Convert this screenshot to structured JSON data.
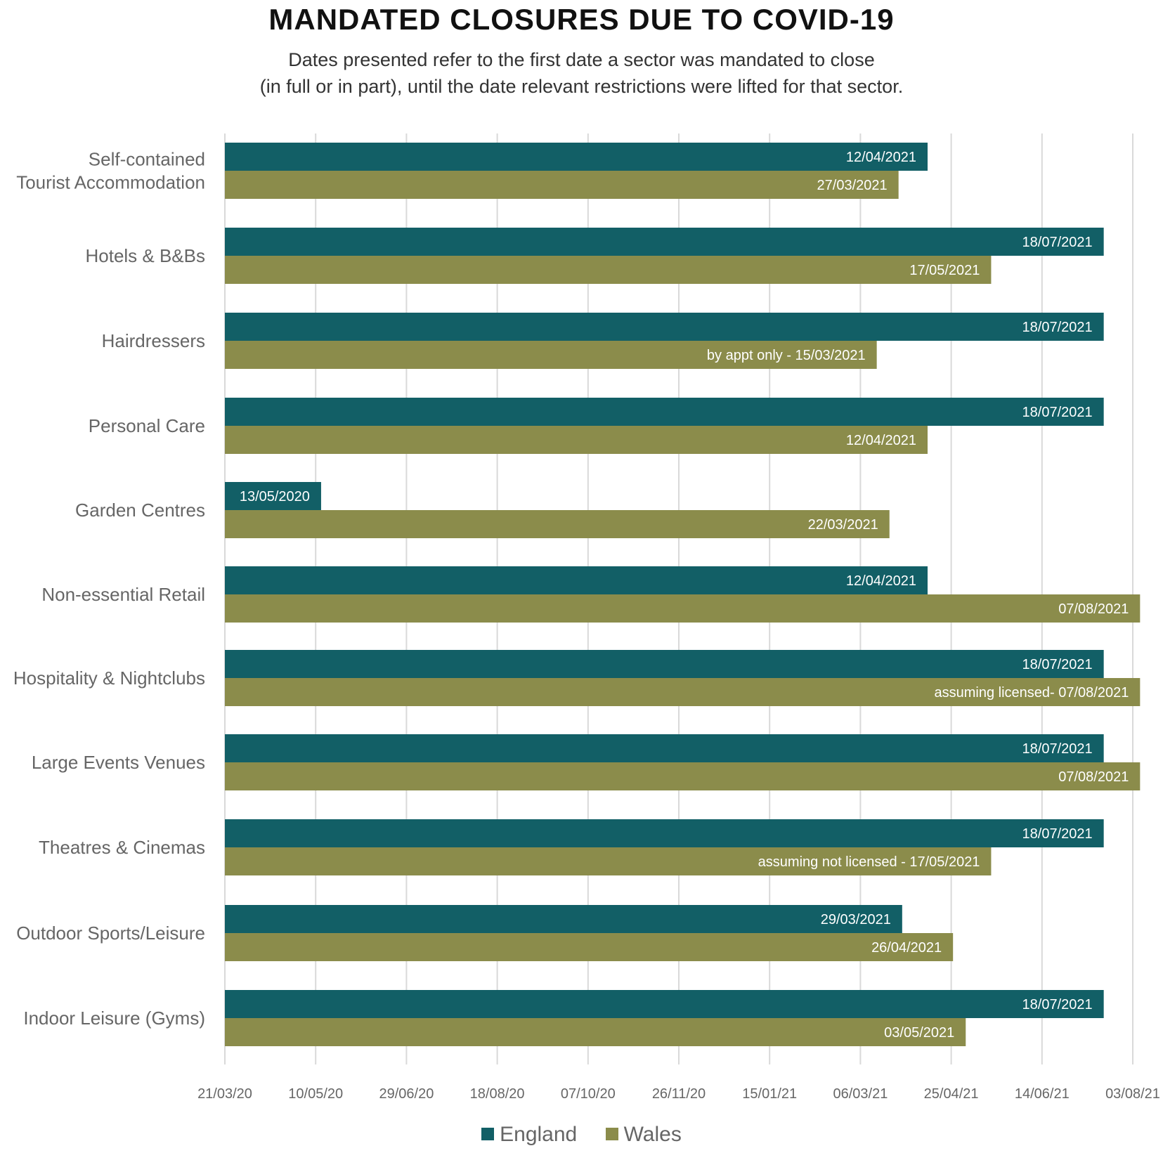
{
  "colors": {
    "england": "#125f66",
    "wales": "#8b8c4b",
    "grid": "#d9d9d9"
  },
  "chart_data": {
    "type": "bar",
    "orientation": "horizontal",
    "title": "MANDATED CLOSURES DUE TO COVID-19",
    "subtitle_lines": [
      "Dates presented refer to the first date a sector was mandated to close",
      "(in full or in part), until the date relevant restrictions were lifted for that sector."
    ],
    "categories": [
      [
        "Self-contained",
        "Tourist Accommodation"
      ],
      [
        "Hotels & B&Bs"
      ],
      [
        "Hairdressers"
      ],
      [
        "Personal Care"
      ],
      [
        "Garden Centres"
      ],
      [
        "Non-essential Retail"
      ],
      [
        "Hospitality & Nightclubs"
      ],
      [
        "Large Events Venues"
      ],
      [
        "Theatres & Cinemas"
      ],
      [
        "Outdoor Sports/Leisure"
      ],
      [
        "Indoor Leisure (Gyms)"
      ]
    ],
    "x_start": "2020-03-21",
    "xlim": [
      "2020-03-21",
      "2021-08-03"
    ],
    "x_ticks": [
      {
        "date": "2020-03-21",
        "label": "21/03/20"
      },
      {
        "date": "2020-05-10",
        "label": "10/05/20"
      },
      {
        "date": "2020-06-29",
        "label": "29/06/20"
      },
      {
        "date": "2020-08-18",
        "label": "18/08/20"
      },
      {
        "date": "2020-10-07",
        "label": "07/10/20"
      },
      {
        "date": "2020-11-26",
        "label": "26/11/20"
      },
      {
        "date": "2021-01-15",
        "label": "15/01/21"
      },
      {
        "date": "2021-03-06",
        "label": "06/03/21"
      },
      {
        "date": "2021-04-25",
        "label": "25/04/21"
      },
      {
        "date": "2021-06-14",
        "label": "14/06/21"
      },
      {
        "date": "2021-08-03",
        "label": "03/08/21"
      }
    ],
    "grid": true,
    "legend_position": "bottom",
    "series": [
      {
        "name": "England",
        "values": [
          "2021-04-12",
          "2021-07-18",
          "2021-07-18",
          "2021-07-18",
          "2020-05-13",
          "2021-04-12",
          "2021-07-18",
          "2021-07-18",
          "2021-07-18",
          "2021-03-29",
          "2021-07-18"
        ],
        "labels": [
          "12/04/2021",
          "18/07/2021",
          "18/07/2021",
          "18/07/2021",
          "13/05/2020",
          "12/04/2021",
          "18/07/2021",
          "18/07/2021",
          "18/07/2021",
          "29/03/2021",
          "18/07/2021"
        ]
      },
      {
        "name": "Wales",
        "values": [
          "2021-03-27",
          "2021-05-17",
          "2021-03-15",
          "2021-04-12",
          "2021-03-22",
          "2021-08-07",
          "2021-08-07",
          "2021-08-07",
          "2021-05-17",
          "2021-04-26",
          "2021-05-03"
        ],
        "labels": [
          "27/03/2021",
          "17/05/2021",
          "by appt only - 15/03/2021",
          "12/04/2021",
          "22/03/2021",
          "07/08/2021",
          "assuming licensed- 07/08/2021",
          "07/08/2021",
          "assuming not licensed - 17/05/2021",
          "26/04/2021",
          "03/05/2021"
        ]
      }
    ]
  }
}
